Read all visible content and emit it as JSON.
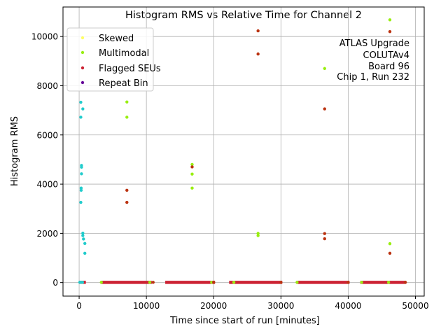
{
  "chart_data": {
    "type": "scatter",
    "title": "Histogram RMS vs Relative Time for Channel 2",
    "xlabel": "Time since start of run [minutes]",
    "ylabel": "Histogram RMS",
    "xlim": [
      -2400,
      51300
    ],
    "ylim": [
      -550,
      11200
    ],
    "xticks": [
      0,
      10000,
      20000,
      30000,
      40000,
      50000
    ],
    "xtick_labels": [
      "0",
      "10000",
      "20000",
      "30000",
      "40000",
      "50000"
    ],
    "yticks": [
      0,
      2000,
      4000,
      6000,
      8000,
      10000
    ],
    "ytick_labels": [
      "0",
      "2000",
      "4000",
      "6000",
      "8000",
      "10000"
    ],
    "grid": true,
    "legend_placement": "top-left",
    "legend": [
      {
        "label": "Skewed",
        "color": "#ffff66"
      },
      {
        "label": "Multimodal",
        "color": "#99ee11"
      },
      {
        "label": "Flagged SEUs",
        "color": "#cc2233"
      },
      {
        "label": "Repeat Bin",
        "color": "#660099"
      }
    ],
    "annotation": [
      "ATLAS Upgrade",
      "COLUTAv4",
      "Board 96",
      "Chip 1, Run 232"
    ],
    "baseline_segments": [
      {
        "x0": 0,
        "x1": 1000,
        "y": 10,
        "color": "#cc2233"
      },
      {
        "x0": 3200,
        "x1": 10800,
        "y": 10,
        "color": "#cc2233"
      },
      {
        "x0": 12800,
        "x1": 20200,
        "y": 10,
        "color": "#cc2233"
      },
      {
        "x0": 22300,
        "x1": 30200,
        "y": 10,
        "color": "#cc2233"
      },
      {
        "x0": 32300,
        "x1": 40200,
        "y": 10,
        "color": "#cc2233"
      },
      {
        "x0": 41800,
        "x1": 48600,
        "y": 10,
        "color": "#cc2233"
      }
    ],
    "series": [
      {
        "color": "#22cccc",
        "points": [
          [
            250,
            7330
          ],
          [
            250,
            6720
          ],
          [
            550,
            7060
          ],
          [
            350,
            4760
          ],
          [
            350,
            4690
          ],
          [
            350,
            4420
          ],
          [
            300,
            3840
          ],
          [
            300,
            3750
          ],
          [
            250,
            3260
          ],
          [
            550,
            2010
          ],
          [
            550,
            1910
          ],
          [
            650,
            1770
          ],
          [
            850,
            1590
          ],
          [
            850,
            1190
          ],
          [
            100,
            10
          ],
          [
            300,
            10
          ],
          [
            500,
            10
          ]
        ]
      },
      {
        "color": "#99ee11",
        "points": [
          [
            7100,
            7340
          ],
          [
            7100,
            6720
          ],
          [
            16800,
            4800
          ],
          [
            16800,
            4410
          ],
          [
            16800,
            3840
          ],
          [
            26600,
            2000
          ],
          [
            26600,
            1910
          ],
          [
            36500,
            8700
          ],
          [
            46200,
            10680
          ],
          [
            46200,
            1580
          ],
          [
            3300,
            10
          ],
          [
            10500,
            10
          ],
          [
            19700,
            10
          ],
          [
            23000,
            10
          ],
          [
            32400,
            10
          ],
          [
            42000,
            10
          ],
          [
            46000,
            10
          ]
        ]
      },
      {
        "color": "#bb3311",
        "points": [
          [
            26600,
            10230
          ],
          [
            26600,
            9290
          ],
          [
            36500,
            7060
          ],
          [
            36500,
            1990
          ],
          [
            36500,
            1780
          ],
          [
            46200,
            10200
          ],
          [
            46200,
            1190
          ],
          [
            7100,
            3750
          ],
          [
            7100,
            3260
          ],
          [
            16800,
            4700
          ],
          [
            11000,
            10
          ],
          [
            20000,
            10
          ],
          [
            30000,
            10
          ],
          [
            40000,
            10
          ],
          [
            48500,
            10
          ]
        ]
      }
    ]
  }
}
